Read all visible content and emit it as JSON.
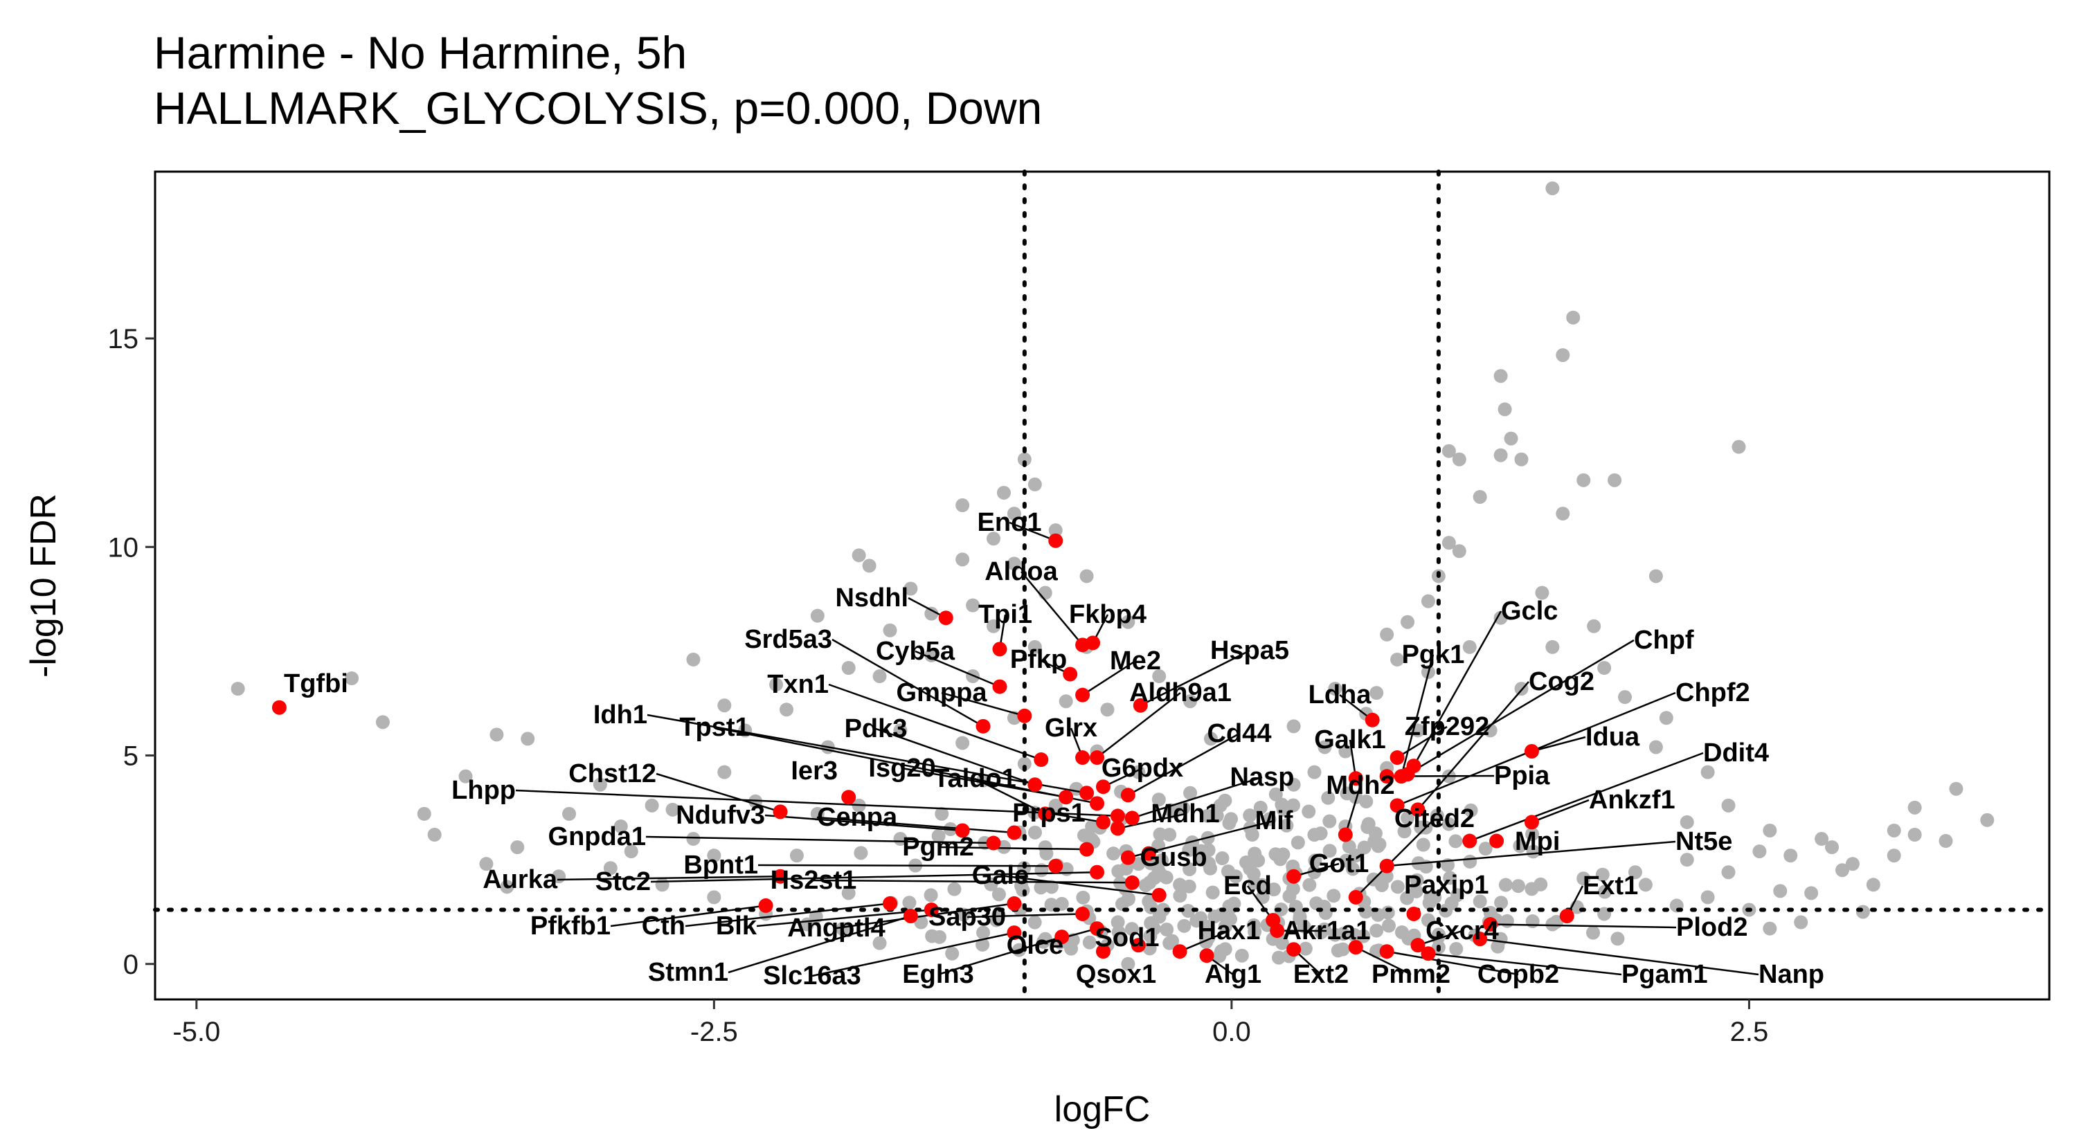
{
  "chart_data": {
    "type": "scatter",
    "title": "Harmine - No Harmine, 5h",
    "subtitle": "HALLMARK_GLYCOLYSIS, p=0.000, Down",
    "xlabel": "logFC",
    "ylabel": "-log10 FDR",
    "xlim": [
      -5.2,
      3.95
    ],
    "ylim": [
      -0.85,
      19.0
    ],
    "xticks": [
      -5.0,
      -2.5,
      0.0,
      2.5
    ],
    "xtick_labels": [
      "-5.0",
      "-2.5",
      "0.0",
      "2.5"
    ],
    "yticks": [
      0,
      5,
      10,
      15
    ],
    "ytick_labels": [
      "0",
      "5",
      "10",
      "15"
    ],
    "vlines": [
      -1,
      1
    ],
    "hline": 1.3,
    "grid": false,
    "colors": {
      "background_points": "#b3b3b3",
      "highlight_points": "#ff0000",
      "reference_lines": "#000000"
    },
    "background_points": [
      [
        -4.8,
        6.6
      ],
      [
        -4.25,
        6.85
      ],
      [
        -4.1,
        5.8
      ],
      [
        -3.7,
        4.5
      ],
      [
        -3.55,
        5.5
      ],
      [
        -3.9,
        3.6
      ],
      [
        -3.4,
        5.4
      ],
      [
        -3.05,
        4.3
      ],
      [
        -2.8,
        3.8
      ],
      [
        -2.6,
        7.3
      ],
      [
        -2.45,
        6.2
      ],
      [
        -2.2,
        6.7
      ],
      [
        -2.0,
        8.35
      ],
      [
        -1.8,
        9.8
      ],
      [
        -1.75,
        9.55
      ],
      [
        -1.55,
        9.0
      ],
      [
        -1.3,
        9.7
      ],
      [
        -1.15,
        10.2
      ],
      [
        -1.1,
        11.3
      ],
      [
        -1.0,
        12.1
      ],
      [
        -1.3,
        11.0
      ],
      [
        -1.05,
        10.8
      ],
      [
        -0.95,
        11.5
      ],
      [
        -0.85,
        10.4
      ],
      [
        -0.7,
        9.3
      ],
      [
        -0.5,
        8.2
      ],
      [
        -0.35,
        6.9
      ],
      [
        -0.2,
        6.3
      ],
      [
        -0.1,
        5.4
      ],
      [
        0.1,
        3.1
      ],
      [
        0.3,
        4.3
      ],
      [
        0.55,
        5.1
      ],
      [
        0.7,
        6.5
      ],
      [
        0.8,
        7.3
      ],
      [
        0.95,
        8.7
      ],
      [
        0.85,
        8.2
      ],
      [
        1.05,
        10.1
      ],
      [
        1.0,
        9.3
      ],
      [
        1.1,
        9.9
      ],
      [
        1.2,
        11.2
      ],
      [
        1.1,
        12.1
      ],
      [
        1.05,
        12.3
      ],
      [
        1.3,
        12.2
      ],
      [
        1.35,
        12.6
      ],
      [
        1.32,
        13.3
      ],
      [
        1.3,
        14.1
      ],
      [
        1.4,
        12.1
      ],
      [
        1.6,
        10.8
      ],
      [
        1.7,
        11.6
      ],
      [
        1.65,
        15.5
      ],
      [
        1.55,
        18.6
      ],
      [
        1.6,
        14.6
      ],
      [
        1.85,
        11.6
      ],
      [
        2.05,
        9.3
      ],
      [
        2.45,
        12.4
      ],
      [
        1.8,
        7.1
      ],
      [
        2.1,
        5.9
      ],
      [
        2.3,
        4.6
      ],
      [
        2.4,
        3.8
      ],
      [
        2.6,
        3.2
      ],
      [
        2.85,
        3.0
      ],
      [
        2.9,
        2.8
      ],
      [
        3.0,
        2.4
      ],
      [
        3.1,
        1.9
      ],
      [
        3.05,
        1.25
      ],
      [
        3.2,
        3.2
      ],
      [
        3.3,
        3.1
      ],
      [
        3.45,
        2.95
      ],
      [
        3.3,
        3.75
      ],
      [
        3.5,
        4.2
      ],
      [
        3.65,
        3.45
      ],
      [
        2.7,
        2.6
      ],
      [
        2.8,
        1.7
      ],
      [
        2.4,
        2.2
      ],
      [
        2.2,
        2.5
      ],
      [
        -2.1,
        2.6
      ],
      [
        -2.5,
        2.6
      ],
      [
        -1.85,
        1.7
      ],
      [
        -1.5,
        1.0
      ],
      [
        -1.2,
        0.75
      ],
      [
        -0.9,
        0.6
      ],
      [
        -0.6,
        0.45
      ],
      [
        -0.3,
        0.5
      ],
      [
        -0.05,
        0.3
      ],
      [
        0.05,
        0.2
      ],
      [
        0.2,
        0.6
      ],
      [
        0.35,
        0.9
      ],
      [
        0.5,
        0.7
      ],
      [
        0.7,
        0.8
      ],
      [
        0.95,
        1.05
      ],
      [
        1.2,
        1.5
      ],
      [
        1.45,
        1.8
      ],
      [
        1.7,
        2.05
      ],
      [
        1.95,
        2.2
      ],
      [
        2.15,
        1.4
      ],
      [
        -0.75,
        4.2
      ],
      [
        -0.55,
        3.3
      ],
      [
        -0.45,
        2.4
      ],
      [
        -0.25,
        1.9
      ],
      [
        -0.9,
        2.8
      ],
      [
        -1.05,
        5.9
      ],
      [
        -0.8,
        6.3
      ],
      [
        -1.2,
        4.4
      ],
      [
        -1.4,
        3.6
      ],
      [
        -1.6,
        3.0
      ],
      [
        -1.8,
        3.8
      ],
      [
        -2.0,
        3.6
      ],
      [
        -2.3,
        3.9
      ],
      [
        -2.7,
        3.7
      ],
      [
        -2.95,
        3.3
      ],
      [
        -3.2,
        3.6
      ],
      [
        -3.45,
        2.8
      ],
      [
        -3.25,
        2.1
      ],
      [
        -3.0,
        2.3
      ],
      [
        -2.75,
        1.9
      ],
      [
        -2.5,
        1.6
      ],
      [
        -2.25,
        1.2
      ],
      [
        -2.05,
        0.95
      ],
      [
        -1.7,
        0.5
      ],
      [
        -1.35,
        0.25
      ],
      [
        -0.4,
        1.5
      ],
      [
        -0.15,
        1.1
      ],
      [
        0.15,
        1.6
      ],
      [
        0.4,
        2.2
      ],
      [
        0.6,
        2.6
      ],
      [
        0.85,
        3.5
      ],
      [
        1.05,
        4.5
      ],
      [
        1.25,
        5.6
      ],
      [
        1.4,
        6.6
      ],
      [
        1.55,
        7.6
      ],
      [
        0.6,
        4.0
      ],
      [
        0.75,
        4.7
      ],
      [
        0.9,
        5.6
      ],
      [
        0.65,
        6.0
      ],
      [
        0.45,
        5.2
      ],
      [
        0.3,
        5.7
      ],
      [
        0.5,
        6.6
      ],
      [
        0.75,
        7.9
      ],
      [
        0.95,
        7.0
      ],
      [
        1.15,
        7.6
      ],
      [
        1.3,
        8.3
      ],
      [
        1.5,
        8.9
      ],
      [
        1.75,
        8.1
      ],
      [
        1.9,
        6.4
      ],
      [
        2.05,
        5.2
      ],
      [
        2.2,
        3.4
      ],
      [
        2.55,
        2.7
      ],
      [
        2.65,
        1.75
      ],
      [
        2.95,
        2.25
      ],
      [
        3.2,
        2.6
      ],
      [
        -1.15,
        8.1
      ],
      [
        -0.95,
        7.6
      ],
      [
        -1.25,
        6.9
      ],
      [
        -1.45,
        7.4
      ],
      [
        -1.65,
        8.0
      ],
      [
        -1.85,
        7.1
      ],
      [
        -2.15,
        6.1
      ],
      [
        -2.35,
        5.6
      ],
      [
        -1.95,
        5.2
      ],
      [
        -1.6,
        5.6
      ],
      [
        -1.3,
        5.3
      ],
      [
        -1.0,
        4.8
      ],
      [
        -0.85,
        3.8
      ],
      [
        -0.65,
        5.1
      ],
      [
        -0.3,
        3.1
      ],
      [
        -0.15,
        2.7
      ],
      [
        0.02,
        2.1
      ],
      [
        0.25,
        3.7
      ],
      [
        0.4,
        4.6
      ],
      [
        0.55,
        3.3
      ],
      [
        -3.6,
        2.4
      ],
      [
        -3.85,
        3.1
      ],
      [
        -3.5,
        1.85
      ],
      [
        -2.9,
        2.7
      ],
      [
        -2.6,
        3.0
      ],
      [
        2.0,
        1.9
      ],
      [
        2.3,
        1.6
      ],
      [
        2.5,
        1.3
      ],
      [
        2.75,
        1.0
      ],
      [
        2.6,
        0.85
      ],
      [
        1.8,
        1.2
      ],
      [
        1.55,
        0.95
      ],
      [
        1.3,
        0.6
      ],
      [
        1.0,
        0.4
      ],
      [
        0.75,
        0.3
      ],
      [
        -0.2,
        4.1
      ],
      [
        -0.45,
        4.6
      ],
      [
        -0.6,
        6.1
      ],
      [
        -0.7,
        7.6
      ],
      [
        -0.9,
        8.9
      ],
      [
        -1.05,
        9.6
      ],
      [
        -1.25,
        8.6
      ],
      [
        -1.45,
        8.4
      ],
      [
        -1.7,
        6.9
      ],
      [
        -2.45,
        4.6
      ]
    ],
    "highlighted_genes": [
      {
        "label": "Tgfbi",
        "x": -4.6,
        "y": 6.15
      },
      {
        "label": "Eno1",
        "x": -0.85,
        "y": 10.15
      },
      {
        "label": "Nsdhl",
        "x": -1.38,
        "y": 8.3
      },
      {
        "label": "Aldoa",
        "x": -0.72,
        "y": 7.65
      },
      {
        "label": "Fkbp4",
        "x": -0.67,
        "y": 7.7
      },
      {
        "label": "Tpi1",
        "x": -1.12,
        "y": 7.55
      },
      {
        "label": "Cyb5a",
        "x": -1.12,
        "y": 6.65
      },
      {
        "label": "Srd5a3",
        "x": -1.2,
        "y": 5.7
      },
      {
        "label": "Pfkp",
        "x": -0.78,
        "y": 6.95
      },
      {
        "label": "Me2",
        "x": -0.72,
        "y": 6.45
      },
      {
        "label": "Hspa5",
        "x": -0.44,
        "y": 6.2
      },
      {
        "label": "Gmppa",
        "x": -1.0,
        "y": 5.95
      },
      {
        "label": "Aldh9a1",
        "x": -0.65,
        "y": 4.95
      },
      {
        "label": "Txn1",
        "x": -0.92,
        "y": 4.9
      },
      {
        "label": "Glrx",
        "x": -0.72,
        "y": 4.95
      },
      {
        "label": "Pdk3",
        "x": -0.95,
        "y": 4.3
      },
      {
        "label": "Cd44",
        "x": -0.5,
        "y": 4.05
      },
      {
        "label": "G6pdx",
        "x": -0.62,
        "y": 4.25
      },
      {
        "label": "Idh1",
        "x": -0.7,
        "y": 4.1
      },
      {
        "label": "Isg20",
        "x": -0.8,
        "y": 4.0
      },
      {
        "label": "Tpst1",
        "x": -0.65,
        "y": 3.85
      },
      {
        "label": "Taldo1",
        "x": -0.9,
        "y": 3.6
      },
      {
        "label": "Ier3",
        "x": -1.85,
        "y": 4.0
      },
      {
        "label": "Chst12",
        "x": -2.18,
        "y": 3.65
      },
      {
        "label": "Lhpp",
        "x": -0.55,
        "y": 3.55
      },
      {
        "label": "Prps1",
        "x": -0.62,
        "y": 3.4
      },
      {
        "label": "Nasp",
        "x": -0.48,
        "y": 3.5
      },
      {
        "label": "Mdh1",
        "x": -0.55,
        "y": 3.25
      },
      {
        "label": "Ndufv3",
        "x": -1.3,
        "y": 3.2
      },
      {
        "label": "Cenpa",
        "x": -1.05,
        "y": 3.15
      },
      {
        "label": "Gnpda1",
        "x": -1.15,
        "y": 2.9
      },
      {
        "label": "Pgm2",
        "x": -0.7,
        "y": 2.75
      },
      {
        "label": "Gusb",
        "x": -0.4,
        "y": 2.65
      },
      {
        "label": "Mif",
        "x": -0.5,
        "y": 2.55
      },
      {
        "label": "Bpnt1",
        "x": -0.85,
        "y": 2.35
      },
      {
        "label": "Aurka",
        "x": -2.18,
        "y": 2.1
      },
      {
        "label": "Stc2",
        "x": -0.65,
        "y": 2.2
      },
      {
        "label": "Hs2st1",
        "x": -0.48,
        "y": 1.95
      },
      {
        "label": "Galе",
        "x": -0.35,
        "y": 1.65
      },
      {
        "label": "Pfkfb1",
        "x": -2.25,
        "y": 1.4
      },
      {
        "label": "Cth",
        "x": -1.65,
        "y": 1.45
      },
      {
        "label": "Blk",
        "x": -1.45,
        "y": 1.3
      },
      {
        "label": "Angptl4",
        "x": -1.05,
        "y": 1.45
      },
      {
        "label": "Sap30",
        "x": -0.72,
        "y": 1.2
      },
      {
        "label": "Stmn1",
        "x": -1.55,
        "y": 1.15
      },
      {
        "label": "Slc16a3",
        "x": -1.05,
        "y": 0.75
      },
      {
        "label": "Olce",
        "x": -0.65,
        "y": 0.85
      },
      {
        "label": "Egln3",
        "x": -0.82,
        "y": 0.65
      },
      {
        "label": "Qsox1",
        "x": -0.62,
        "y": 0.3
      },
      {
        "label": "Sod1",
        "x": -0.45,
        "y": 0.45
      },
      {
        "label": "Hax1",
        "x": -0.25,
        "y": 0.3
      },
      {
        "label": "Alg1",
        "x": -0.12,
        "y": 0.2
      },
      {
        "label": "Ecd",
        "x": 0.2,
        "y": 1.05
      },
      {
        "label": "Akr1a1",
        "x": 0.22,
        "y": 0.8
      },
      {
        "label": "Ext2",
        "x": 0.3,
        "y": 0.35
      },
      {
        "label": "Pmm2",
        "x": 0.6,
        "y": 0.4
      },
      {
        "label": "Cxcr4",
        "x": 0.9,
        "y": 0.45
      },
      {
        "label": "Copb2",
        "x": 0.75,
        "y": 0.3
      },
      {
        "label": "Pgam1",
        "x": 0.95,
        "y": 0.25
      },
      {
        "label": "Nanp",
        "x": 1.2,
        "y": 0.6
      },
      {
        "label": "Plod2",
        "x": 1.25,
        "y": 0.95
      },
      {
        "label": "Ext1",
        "x": 1.62,
        "y": 1.15
      },
      {
        "label": "Paxip1",
        "x": 0.88,
        "y": 1.2
      },
      {
        "label": "Got1",
        "x": 0.3,
        "y": 2.1
      },
      {
        "label": "Cited2",
        "x": 0.6,
        "y": 1.6
      },
      {
        "label": "Mpi",
        "x": 1.28,
        "y": 2.95
      },
      {
        "label": "Nt5e",
        "x": 0.75,
        "y": 2.35
      },
      {
        "label": "Mdh2",
        "x": 0.55,
        "y": 3.1
      },
      {
        "label": "Ankzf1",
        "x": 1.45,
        "y": 3.4
      },
      {
        "label": "Ppia",
        "x": 0.75,
        "y": 4.5
      },
      {
        "label": "Ddit4",
        "x": 1.15,
        "y": 2.95
      },
      {
        "label": "Zfp292",
        "x": 0.8,
        "y": 4.95
      },
      {
        "label": "Idua",
        "x": 1.45,
        "y": 5.1
      },
      {
        "label": "Galk1",
        "x": 0.6,
        "y": 4.45
      },
      {
        "label": "Ldha",
        "x": 0.68,
        "y": 5.85
      },
      {
        "label": "Cog2",
        "x": 0.9,
        "y": 3.7
      },
      {
        "label": "Chpf2",
        "x": 0.8,
        "y": 3.8
      },
      {
        "label": "Pgk1",
        "x": 0.82,
        "y": 4.5
      },
      {
        "label": "Chpf",
        "x": 0.85,
        "y": 4.55
      },
      {
        "label": "Gclc",
        "x": 0.88,
        "y": 4.75
      }
    ]
  }
}
